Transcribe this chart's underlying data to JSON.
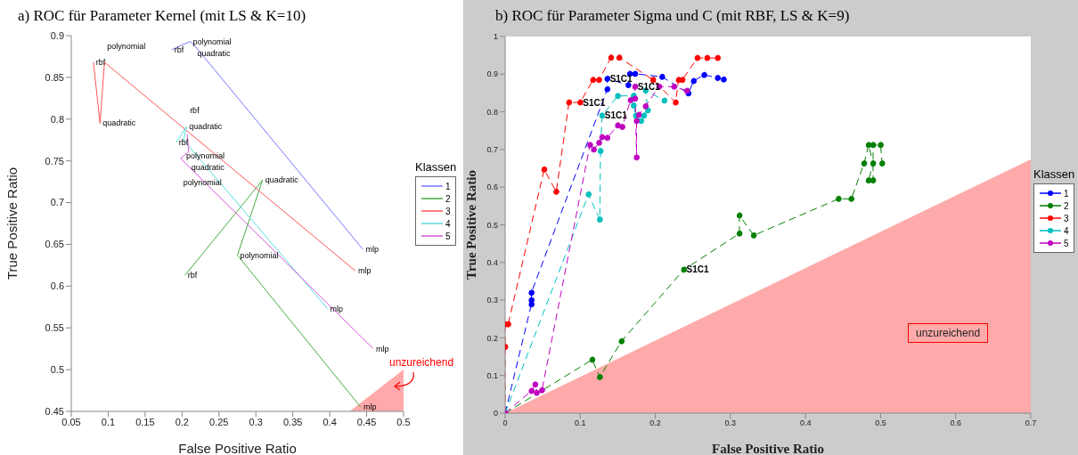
{
  "chart_data": [
    {
      "type": "line",
      "title": "a) ROC für Parameter Kernel (mit LS & K=10)",
      "xlabel": "False Positive Ratio",
      "ylabel": "True Positive Ratio",
      "legend_title": "Klassen",
      "legend": "right",
      "marker": "none",
      "line_style": "solid",
      "xlim": [
        0.05,
        0.5
      ],
      "xticks": [
        0.05,
        0.1,
        0.15,
        0.2,
        0.25,
        0.3,
        0.35,
        0.4,
        0.45,
        0.5
      ],
      "ylim": [
        0.45,
        0.9
      ],
      "yticks": [
        0.45,
        0.5,
        0.55,
        0.6,
        0.65,
        0.7,
        0.75,
        0.8,
        0.85,
        0.9
      ],
      "series": [
        {
          "type": "area",
          "color": "#ffaaaa",
          "x": [
            0.427,
            0.5
          ],
          "values": [
            0.45,
            0.5
          ]
        },
        {
          "name": "1",
          "color": "#7777ff",
          "x": [
            0.186,
            0.211,
            0.217,
            0.445
          ],
          "values": [
            0.883,
            0.893,
            0.888,
            0.644
          ]
        },
        {
          "name": "2",
          "color": "#44aa44",
          "x": [
            0.204,
            0.309,
            0.275,
            0.442
          ],
          "values": [
            0.613,
            0.727,
            0.637,
            0.455
          ]
        },
        {
          "name": "3",
          "color": "#ff5555",
          "x": [
            0.08,
            0.089,
            0.095,
            0.435
          ],
          "values": [
            0.868,
            0.795,
            0.868,
            0.618
          ]
        },
        {
          "name": "4",
          "color": "#55dddd",
          "x": [
            0.192,
            0.206,
            0.202,
            0.397
          ],
          "values": [
            0.772,
            0.791,
            0.775,
            0.573
          ]
        },
        {
          "name": "5",
          "color": "#dd55dd",
          "x": [
            0.207,
            0.209,
            0.198,
            0.459
          ],
          "values": [
            0.782,
            0.761,
            0.753,
            0.525
          ]
        }
      ],
      "annotations": [
        {
          "text": "rbf",
          "x": 0.186,
          "y": 0.883
        },
        {
          "text": "polynomial",
          "x": 0.211,
          "y": 0.893
        },
        {
          "text": "quadratic",
          "x": 0.217,
          "y": 0.888
        },
        {
          "text": "mlp",
          "x": 0.445,
          "y": 0.644
        },
        {
          "text": "rbf",
          "x": 0.204,
          "y": 0.613
        },
        {
          "text": "quadratic",
          "x": 0.309,
          "y": 0.727
        },
        {
          "text": "polynomial",
          "x": 0.275,
          "y": 0.637
        },
        {
          "text": "mlp",
          "x": 0.442,
          "y": 0.455
        },
        {
          "text": "rbf",
          "x": 0.08,
          "y": 0.868
        },
        {
          "text": "quadratic",
          "x": 0.089,
          "y": 0.795
        },
        {
          "text": "polynomial",
          "x": 0.095,
          "y": 0.868
        },
        {
          "text": "mlp",
          "x": 0.435,
          "y": 0.618
        },
        {
          "text": "rbf",
          "x": 0.192,
          "y": 0.772
        },
        {
          "text": "quadratic",
          "x": 0.206,
          "y": 0.791
        },
        {
          "text": "polynomial",
          "x": 0.202,
          "y": 0.775
        },
        {
          "text": "mlp",
          "x": 0.397,
          "y": 0.573
        },
        {
          "text": "rbf",
          "x": 0.207,
          "y": 0.782
        },
        {
          "text": "quadratic",
          "x": 0.209,
          "y": 0.761
        },
        {
          "text": "polynomial",
          "x": 0.198,
          "y": 0.753
        },
        {
          "text": "mlp",
          "x": 0.459,
          "y": 0.525
        },
        "unzureichend"
      ]
    },
    {
      "type": "line",
      "title": "b) ROC für Parameter Sigma und C (mit RBF, LS & K=9)",
      "xlabel": "False Positive Ratio",
      "ylabel": "True Positive Ratio",
      "legend_title": "Klassen",
      "legend": "right",
      "marker": "circle",
      "line_style": "dashed",
      "xlim": [
        0,
        0.7
      ],
      "xticks": [
        0,
        0.1,
        0.2,
        0.3,
        0.4,
        0.5,
        0.6,
        0.7
      ],
      "ylim": [
        0,
        1
      ],
      "yticks": [
        0,
        0.1,
        0.2,
        0.3,
        0.4,
        0.5,
        0.6,
        0.7,
        0.8,
        0.9,
        1
      ],
      "series": [
        {
          "type": "area",
          "color": "#ffaaaa",
          "marker": "none",
          "x": [
            0,
            0.7
          ],
          "values": [
            0,
            0.674
          ]
        },
        {
          "name": "1",
          "color": "#0000ff",
          "x": [
            0,
            0.035,
            0.035,
            0.035,
            0.136,
            0.136,
            0.164,
            0.166,
            0.173,
            0.209,
            0.244,
            0.251,
            0.265,
            0.283,
            0.291
          ],
          "values": [
            0,
            0.289,
            0.3,
            0.32,
            0.86,
            0.888,
            0.871,
            0.901,
            0.901,
            0.893,
            0.849,
            0.882,
            0.898,
            0.89,
            0.886
          ]
        },
        {
          "name": "2",
          "color": "#008000",
          "x": [
            0,
            0.116,
            0.126,
            0.155,
            0.238,
            0.312,
            0.312,
            0.331,
            0.444,
            0.461,
            0.478,
            0.484,
            0.49,
            0.484,
            0.49,
            0.49,
            0.5,
            0.502
          ],
          "values": [
            0,
            0.142,
            0.096,
            0.191,
            0.381,
            0.477,
            0.525,
            0.472,
            0.569,
            0.569,
            0.663,
            0.712,
            0.663,
            0.618,
            0.618,
            0.712,
            0.712,
            0.663
          ]
        },
        {
          "name": "3",
          "color": "#ff0000",
          "x": [
            0,
            0,
            0,
            0.004,
            0.052,
            0.068,
            0.085,
            0.1,
            0.117,
            0.125,
            0.141,
            0.152,
            0.197,
            0.227,
            0.231,
            0.236,
            0.256,
            0.269,
            0.283
          ],
          "values": [
            0,
            0.176,
            0.236,
            0.236,
            0.647,
            0.588,
            0.825,
            0.825,
            0.885,
            0.885,
            0.944,
            0.944,
            0.885,
            0.825,
            0.885,
            0.885,
            0.943,
            0.943,
            0.943
          ]
        },
        {
          "name": "4",
          "color": "#00bfbf",
          "x": [
            0,
            0.111,
            0.126,
            0.127,
            0.129,
            0.15,
            0.171,
            0.171,
            0.174,
            0.181,
            0.185,
            0.19,
            0.187,
            0.212
          ],
          "values": [
            0,
            0.581,
            0.514,
            0.696,
            0.79,
            0.842,
            0.843,
            0.817,
            0.79,
            0.776,
            0.79,
            0.804,
            0.857,
            0.83
          ]
        },
        {
          "name": "5",
          "color": "#bf00bf",
          "x": [
            0,
            0.035,
            0.04,
            0.042,
            0.049,
            0.113,
            0.118,
            0.125,
            0.129,
            0.136,
            0.15,
            0.156,
            0.167,
            0.173,
            0.173,
            0.175,
            0.175,
            0.178,
            0.187,
            0.205,
            0.225,
            0.242
          ],
          "values": [
            0,
            0.059,
            0.076,
            0.054,
            0.061,
            0.712,
            0.7,
            0.718,
            0.733,
            0.731,
            0.764,
            0.76,
            0.831,
            0.835,
            0.867,
            0.679,
            0.776,
            0.792,
            0.815,
            0.867,
            0.867,
            0.856
          ]
        }
      ],
      "annotations": [
        {
          "text": "S1C1",
          "x": 0.1,
          "y": 0.825
        },
        {
          "text": "S1C1",
          "x": 0.136,
          "y": 0.888
        },
        {
          "text": "S1C1",
          "x": 0.173,
          "y": 0.867
        },
        {
          "text": "S1C1",
          "x": 0.129,
          "y": 0.79
        },
        {
          "text": "S1C1",
          "x": 0.238,
          "y": 0.381
        },
        "unzureichend"
      ]
    }
  ]
}
